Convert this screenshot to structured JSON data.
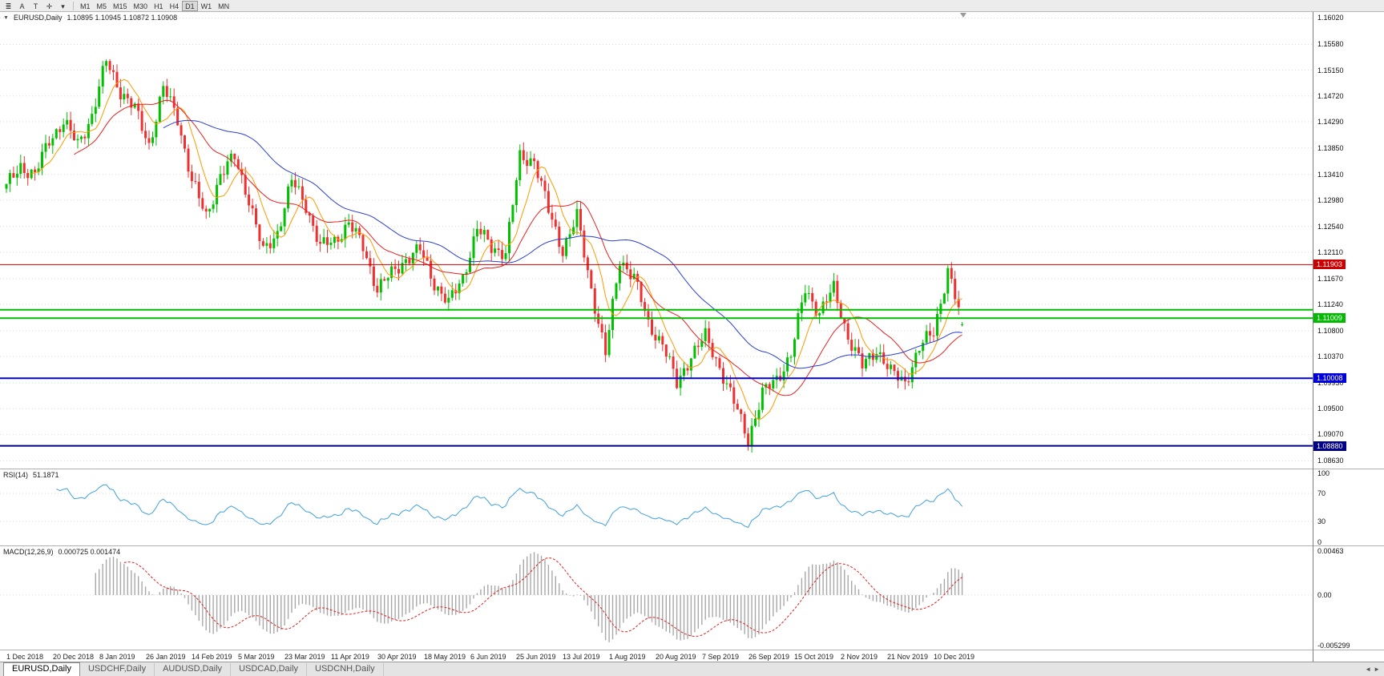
{
  "toolbar": {
    "icons": [
      {
        "name": "chart-list-icon",
        "glyph": "≣"
      },
      {
        "name": "ask-line-button",
        "glyph": "A"
      },
      {
        "name": "text-tool-button",
        "glyph": "T"
      },
      {
        "name": "crosshair-tool-icon",
        "glyph": "✛"
      },
      {
        "name": "dropdown-caret-icon",
        "glyph": "▾"
      }
    ],
    "timeframes": [
      "M1",
      "M5",
      "M15",
      "M30",
      "H1",
      "H4",
      "D1",
      "W1",
      "MN"
    ],
    "active_timeframe": "D1"
  },
  "chart": {
    "dropdown_glyph": "▼",
    "symbol_label": "EURUSD,Daily",
    "ohlc_values": "1.10895 1.10945 1.10872 1.10908",
    "price_scale_labels": [
      "1.16020",
      "1.15580",
      "1.15150",
      "1.14720",
      "1.14290",
      "1.13850",
      "1.13410",
      "1.12980",
      "1.12540",
      "1.12110",
      "1.11670",
      "1.11240",
      "1.10800",
      "1.10370",
      "1.09930",
      "1.09500",
      "1.09070",
      "1.08630"
    ],
    "hlines": [
      {
        "price": 1.11903,
        "color": "#cc0000",
        "badge": "1.11903",
        "thickness": 1
      },
      {
        "price": 1.1115,
        "color": "#00bb00",
        "thickness": 2
      },
      {
        "price": 1.11009,
        "color": "#00bb00",
        "badge": "1.11009",
        "thickness": 2
      },
      {
        "price": 1.10008,
        "color": "#0000dd",
        "badge": "1.10008",
        "thickness": 2
      },
      {
        "price": 1.0888,
        "color": "#000088",
        "badge": "1.08880",
        "thickness": 2
      }
    ]
  },
  "rsi": {
    "label": "RSI(14)",
    "value": "51.1871",
    "scale": [
      "100",
      "70",
      "30",
      "0"
    ],
    "levels": [
      70,
      30
    ]
  },
  "macd": {
    "label": "MACD(12,26,9)",
    "values": "0.000725 0.001474",
    "scale": [
      "0.00463",
      "0.00",
      "-0.005299"
    ]
  },
  "time_axis": {
    "dates": [
      "1 Dec 2018",
      "20 Dec 2018",
      "8 Jan 2019",
      "26 Jan 2019",
      "14 Feb 2019",
      "5 Mar 2019",
      "23 Mar 2019",
      "11 Apr 2019",
      "30 Apr 2019",
      "18 May 2019",
      "6 Jun 2019",
      "25 Jun 2019",
      "13 Jul 2019",
      "1 Aug 2019",
      "20 Aug 2019",
      "7 Sep 2019",
      "26 Sep 2019",
      "15 Oct 2019",
      "2 Nov 2019",
      "21 Nov 2019",
      "10 Dec 2019"
    ]
  },
  "tabs": {
    "items": [
      "EURUSD,Daily",
      "USDCHF,Daily",
      "AUDUSD,Daily",
      "USDCAD,Daily",
      "USDCNH,Daily"
    ],
    "active_index": 0,
    "arrows": [
      "◄",
      "►"
    ]
  },
  "chart_data": {
    "type": "candlestick",
    "symbol": "EURUSD",
    "timeframe": "Daily",
    "title": "EURUSD,Daily",
    "x_range": [
      "1 Dec 2018",
      "20 Dec 2019"
    ],
    "y_range": [
      1.085,
      1.1612
    ],
    "grid_levels": [
      1.1602,
      1.1558,
      1.1515,
      1.1472,
      1.1429,
      1.1385,
      1.1341,
      1.1298,
      1.1254,
      1.1211,
      1.1167,
      1.1124,
      1.108,
      1.1037,
      1.0993,
      1.095,
      1.0907,
      1.0863
    ],
    "candles_per_anchor": 4,
    "anchor_closes": [
      1.132,
      1.1355,
      1.134,
      1.1398,
      1.143,
      1.139,
      1.144,
      1.153,
      1.148,
      1.145,
      1.139,
      1.1485,
      1.1435,
      1.133,
      1.127,
      1.134,
      1.137,
      1.13,
      1.121,
      1.1245,
      1.133,
      1.129,
      1.122,
      1.123,
      1.126,
      1.122,
      1.115,
      1.1175,
      1.12,
      1.1215,
      1.116,
      1.1125,
      1.117,
      1.125,
      1.122,
      1.121,
      1.137,
      1.1365,
      1.128,
      1.1215,
      1.127,
      1.115,
      1.104,
      1.12,
      1.117,
      1.109,
      1.106,
      1.099,
      1.104,
      1.107,
      1.102,
      1.096,
      1.09,
      1.0975,
      1.1,
      1.104,
      1.115,
      1.111,
      1.115,
      1.107,
      1.102,
      1.105,
      1.101,
      1.0995,
      1.105,
      1.108,
      1.118,
      1.1091
    ],
    "last_ohlc": {
      "open": 1.10895,
      "high": 1.10945,
      "low": 1.10872,
      "close": 1.10908
    },
    "horizontal_levels": [
      1.11903,
      1.1115,
      1.11009,
      1.10008,
      1.0888
    ],
    "moving_averages": [
      {
        "period": 8,
        "color": "#ff9900"
      },
      {
        "period": 20,
        "color": "#e82020"
      },
      {
        "period": 45,
        "color": "#2b3fd0"
      }
    ],
    "indicators": {
      "rsi_period": 14,
      "rsi_last": 51.1871,
      "rsi_range": [
        0,
        100
      ],
      "macd": [
        12,
        26,
        9
      ],
      "macd_last": [
        0.000725,
        0.001474
      ],
      "macd_range": [
        -0.005299,
        0.00463
      ]
    },
    "colors": {
      "bull": "#00c000",
      "bear": "#f03030",
      "grid": "#dadada",
      "rsi": "#3fa0dc",
      "macd_hist": "#a8a8a8",
      "macd_signal": "#e02020"
    }
  }
}
